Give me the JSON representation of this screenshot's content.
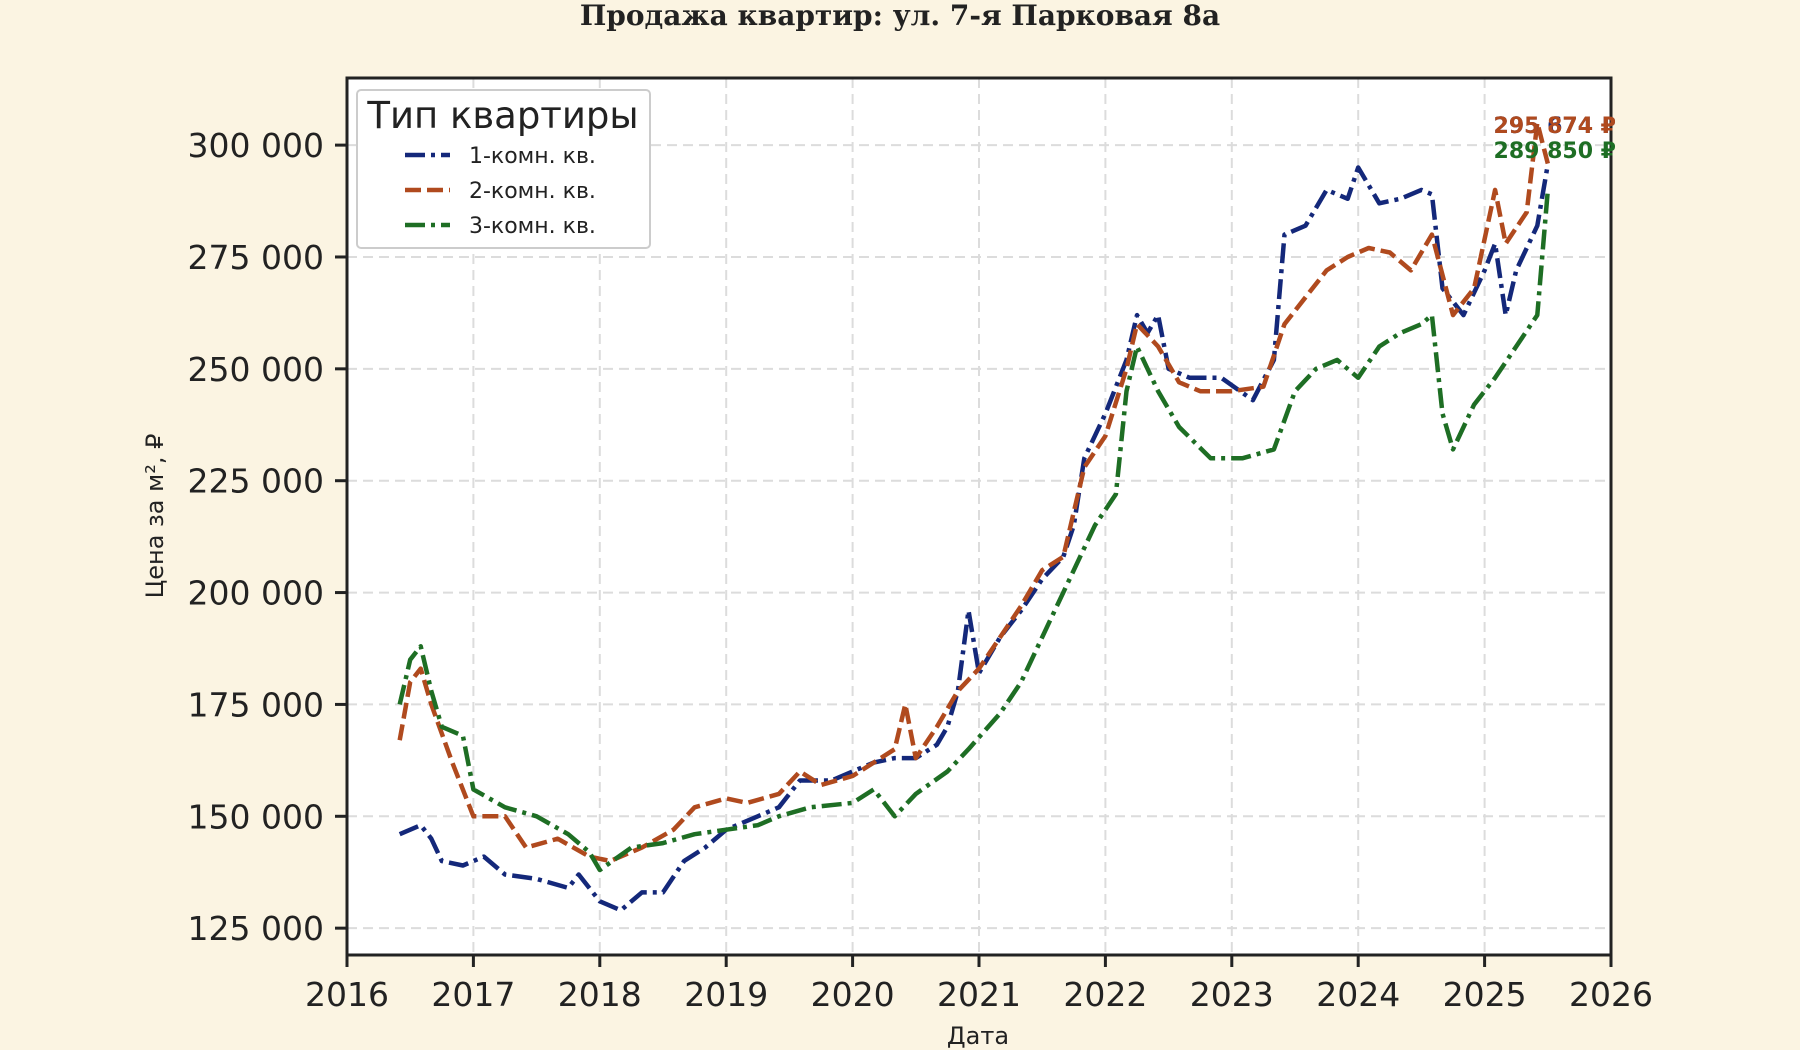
{
  "chart_data": {
    "type": "line",
    "title": "Продажа квартир: ул. 7-я Парковая 8а",
    "xlabel": "Дата",
    "ylabel": "Цена за м², ₽",
    "xlim": [
      2016,
      2026
    ],
    "ylim": [
      119000,
      315000
    ],
    "x_ticks": [
      2016,
      2017,
      2018,
      2019,
      2020,
      2021,
      2022,
      2023,
      2024,
      2025,
      2026
    ],
    "x_tick_labels": [
      "2016",
      "2017",
      "2018",
      "2019",
      "2020",
      "2021",
      "2022",
      "2023",
      "2024",
      "2025",
      "2026"
    ],
    "y_ticks": [
      125000,
      150000,
      175000,
      200000,
      225000,
      250000,
      275000,
      300000
    ],
    "y_tick_labels": [
      "125 000",
      "150 000",
      "175 000",
      "200 000",
      "225 000",
      "250 000",
      "275 000",
      "300 000"
    ],
    "grid": true,
    "legend": {
      "title": "Тип квартиры",
      "position": "top-left"
    },
    "series": [
      {
        "name": "1-комн. кв.",
        "color": "#14287a",
        "dash": "dash-dot",
        "end_label": "295 674 ₽",
        "points": [
          [
            "2016-06",
            146000
          ],
          [
            "2016-08",
            148000
          ],
          [
            "2016-09",
            145000
          ],
          [
            "2016-10",
            140000
          ],
          [
            "2016-12",
            139000
          ],
          [
            "2017-02",
            141000
          ],
          [
            "2017-04",
            137000
          ],
          [
            "2017-07",
            136000
          ],
          [
            "2017-10",
            134000
          ],
          [
            "2017-11",
            137000
          ],
          [
            "2018-01",
            131000
          ],
          [
            "2018-03",
            129000
          ],
          [
            "2018-05",
            133000
          ],
          [
            "2018-07",
            133000
          ],
          [
            "2018-09",
            140000
          ],
          [
            "2018-11",
            143000
          ],
          [
            "2019-01",
            147000
          ],
          [
            "2019-04",
            150000
          ],
          [
            "2019-06",
            152000
          ],
          [
            "2019-08",
            158000
          ],
          [
            "2019-11",
            158000
          ],
          [
            "2020-01",
            160000
          ],
          [
            "2020-03",
            162000
          ],
          [
            "2020-05",
            163000
          ],
          [
            "2020-07",
            163000
          ],
          [
            "2020-09",
            166000
          ],
          [
            "2020-10",
            170000
          ],
          [
            "2020-11",
            178000
          ],
          [
            "2020-12",
            196000
          ],
          [
            "2021-01",
            182000
          ],
          [
            "2021-03",
            190000
          ],
          [
            "2021-05",
            196000
          ],
          [
            "2021-07",
            203000
          ],
          [
            "2021-09",
            208000
          ],
          [
            "2021-10",
            215000
          ],
          [
            "2021-11",
            230000
          ],
          [
            "2022-01",
            240000
          ],
          [
            "2022-03",
            252000
          ],
          [
            "2022-04",
            262000
          ],
          [
            "2022-05",
            258000
          ],
          [
            "2022-06",
            262000
          ],
          [
            "2022-07",
            250000
          ],
          [
            "2022-09",
            248000
          ],
          [
            "2022-12",
            248000
          ],
          [
            "2023-03",
            243000
          ],
          [
            "2023-05",
            252000
          ],
          [
            "2023-06",
            280000
          ],
          [
            "2023-08",
            282000
          ],
          [
            "2023-10",
            290000
          ],
          [
            "2023-12",
            288000
          ],
          [
            "2024-01",
            295000
          ],
          [
            "2024-03",
            287000
          ],
          [
            "2024-05",
            288000
          ],
          [
            "2024-07",
            290000
          ],
          [
            "2024-08",
            289000
          ],
          [
            "2024-09",
            268000
          ],
          [
            "2024-11",
            262000
          ],
          [
            "2025-01",
            272000
          ],
          [
            "2025-02",
            278000
          ],
          [
            "2025-03",
            262000
          ],
          [
            "2025-04",
            272000
          ],
          [
            "2025-06",
            282000
          ],
          [
            "2025-07",
            295674
          ]
        ]
      },
      {
        "name": "2-комн. кв.",
        "color": "#b04a1e",
        "dash": "dashed",
        "end_label": "295 874 ₽",
        "points": [
          [
            "2016-06",
            167000
          ],
          [
            "2016-07",
            180000
          ],
          [
            "2016-08",
            183000
          ],
          [
            "2016-09",
            175000
          ],
          [
            "2016-11",
            162000
          ],
          [
            "2017-01",
            150000
          ],
          [
            "2017-04",
            150000
          ],
          [
            "2017-06",
            143000
          ],
          [
            "2017-09",
            145000
          ],
          [
            "2017-12",
            141000
          ],
          [
            "2018-02",
            140000
          ],
          [
            "2018-05",
            143000
          ],
          [
            "2018-08",
            147000
          ],
          [
            "2018-10",
            152000
          ],
          [
            "2019-01",
            154000
          ],
          [
            "2019-03",
            153000
          ],
          [
            "2019-06",
            155000
          ],
          [
            "2019-08",
            160000
          ],
          [
            "2019-10",
            157000
          ],
          [
            "2020-01",
            159000
          ],
          [
            "2020-03",
            162000
          ],
          [
            "2020-05",
            165000
          ],
          [
            "2020-06",
            175000
          ],
          [
            "2020-07",
            163000
          ],
          [
            "2020-09",
            170000
          ],
          [
            "2020-11",
            178000
          ],
          [
            "2021-01",
            183000
          ],
          [
            "2021-03",
            190000
          ],
          [
            "2021-05",
            197000
          ],
          [
            "2021-07",
            205000
          ],
          [
            "2021-09",
            208000
          ],
          [
            "2021-11",
            228000
          ],
          [
            "2022-01",
            235000
          ],
          [
            "2022-03",
            250000
          ],
          [
            "2022-04",
            260000
          ],
          [
            "2022-06",
            255000
          ],
          [
            "2022-08",
            247000
          ],
          [
            "2022-10",
            245000
          ],
          [
            "2023-01",
            245000
          ],
          [
            "2023-04",
            246000
          ],
          [
            "2023-06",
            260000
          ],
          [
            "2023-08",
            266000
          ],
          [
            "2023-10",
            272000
          ],
          [
            "2023-12",
            275000
          ],
          [
            "2024-02",
            277000
          ],
          [
            "2024-04",
            276000
          ],
          [
            "2024-06",
            272000
          ],
          [
            "2024-08",
            280000
          ],
          [
            "2024-10",
            262000
          ],
          [
            "2024-12",
            268000
          ],
          [
            "2025-02",
            290000
          ],
          [
            "2025-03",
            278000
          ],
          [
            "2025-05",
            285000
          ],
          [
            "2025-06",
            305000
          ],
          [
            "2025-07",
            295874
          ]
        ]
      },
      {
        "name": "3-комн. кв.",
        "color": "#1e6e24",
        "dash": "dash-dot",
        "end_label": "289 850 ₽",
        "points": [
          [
            "2016-06",
            175000
          ],
          [
            "2016-07",
            185000
          ],
          [
            "2016-08",
            188000
          ],
          [
            "2016-09",
            178000
          ],
          [
            "2016-10",
            170000
          ],
          [
            "2016-12",
            168000
          ],
          [
            "2017-01",
            156000
          ],
          [
            "2017-04",
            152000
          ],
          [
            "2017-07",
            150000
          ],
          [
            "2017-10",
            146000
          ],
          [
            "2017-12",
            142000
          ],
          [
            "2018-01",
            138000
          ],
          [
            "2018-04",
            143000
          ],
          [
            "2018-07",
            144000
          ],
          [
            "2018-10",
            146000
          ],
          [
            "2019-01",
            147000
          ],
          [
            "2019-04",
            148000
          ],
          [
            "2019-06",
            150000
          ],
          [
            "2019-09",
            152000
          ],
          [
            "2020-01",
            153000
          ],
          [
            "2020-03",
            156000
          ],
          [
            "2020-05",
            150000
          ],
          [
            "2020-07",
            155000
          ],
          [
            "2020-10",
            160000
          ],
          [
            "2020-12",
            165000
          ],
          [
            "2021-03",
            173000
          ],
          [
            "2021-05",
            180000
          ],
          [
            "2021-08",
            195000
          ],
          [
            "2021-10",
            205000
          ],
          [
            "2021-12",
            215000
          ],
          [
            "2022-02",
            222000
          ],
          [
            "2022-03",
            245000
          ],
          [
            "2022-04",
            255000
          ],
          [
            "2022-06",
            245000
          ],
          [
            "2022-08",
            237000
          ],
          [
            "2022-11",
            230000
          ],
          [
            "2023-02",
            230000
          ],
          [
            "2023-05",
            232000
          ],
          [
            "2023-07",
            245000
          ],
          [
            "2023-09",
            250000
          ],
          [
            "2023-11",
            252000
          ],
          [
            "2024-01",
            248000
          ],
          [
            "2024-03",
            255000
          ],
          [
            "2024-05",
            258000
          ],
          [
            "2024-07",
            260000
          ],
          [
            "2024-08",
            262000
          ],
          [
            "2024-09",
            240000
          ],
          [
            "2024-10",
            232000
          ],
          [
            "2024-12",
            242000
          ],
          [
            "2025-02",
            248000
          ],
          [
            "2025-04",
            255000
          ],
          [
            "2025-06",
            262000
          ],
          [
            "2025-07",
            289850
          ]
        ]
      }
    ]
  }
}
